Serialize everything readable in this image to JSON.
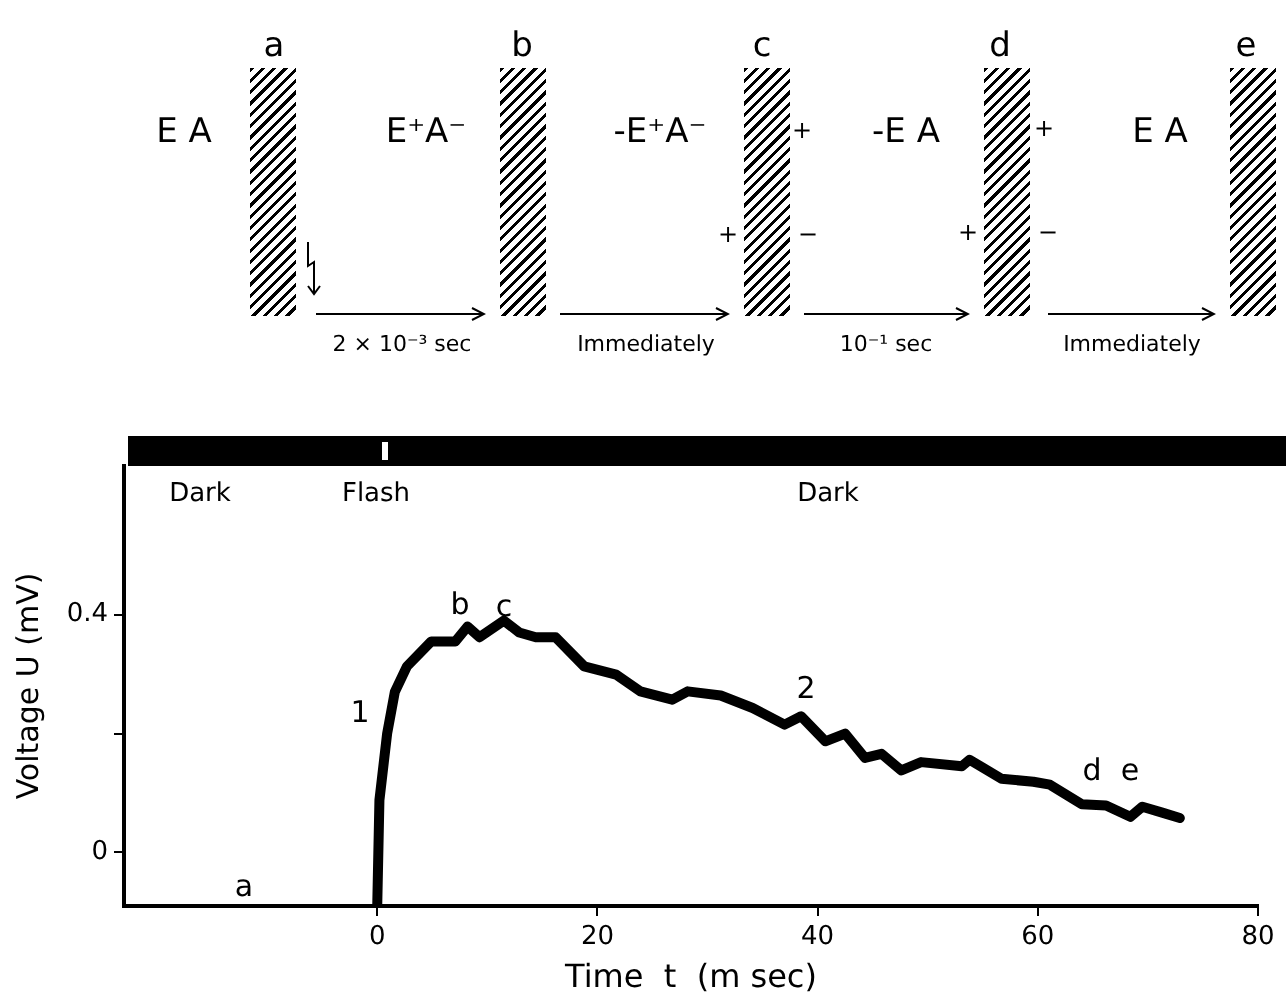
{
  "chart_data": {
    "type": "line",
    "xlabel": "Time  t  (m sec)",
    "ylabel": "Voltage U (mV)",
    "x": [
      0,
      0.2,
      0.9,
      1.6,
      2.7,
      4.9,
      7.1,
      8.2,
      9.3,
      11.5,
      12.9,
      14.4,
      16.2,
      18.8,
      21.7,
      23.9,
      26.8,
      28.2,
      31.2,
      34.1,
      37,
      38.5,
      40.7,
      42.5,
      44.3,
      45.8,
      47.6,
      49.4,
      53.1,
      53.8,
      56.7,
      59.6,
      61.1,
      64,
      66.2,
      68.4,
      69.5,
      71.3,
      72.9
    ],
    "series": [
      {
        "color": "#000000",
        "values": [
          -0.09,
          0.088,
          0.2,
          0.27,
          0.313,
          0.355,
          0.355,
          0.38,
          0.362,
          0.39,
          0.37,
          0.362,
          0.362,
          0.313,
          0.299,
          0.271,
          0.257,
          0.271,
          0.264,
          0.243,
          0.215,
          0.229,
          0.187,
          0.2,
          0.159,
          0.166,
          0.138,
          0.152,
          0.145,
          0.156,
          0.124,
          0.119,
          0.114,
          0.081,
          0.079,
          0.06,
          0.077,
          0.067,
          0.058
        ]
      }
    ],
    "xlim": [
      -23,
      80
    ],
    "xticks": [
      0,
      20,
      40,
      60,
      80
    ],
    "ylim": [
      -0.09,
      0.65
    ],
    "yticks": [
      0,
      {
        "value": 0.2,
        "label": null
      },
      0.4
    ],
    "grid": false,
    "legend": false,
    "marker": "none",
    "line_style": "solid",
    "annotations": [
      "a",
      "1",
      "b",
      "c",
      "2",
      "d",
      "e",
      "Dark",
      "Flash",
      "Dark",
      "a",
      "b",
      "c",
      "d",
      "e",
      "E A",
      "E⁺A⁻",
      "-E⁺A⁻",
      "-E A",
      "E A",
      "+",
      "+",
      "−",
      "+",
      "+",
      "−",
      "2 × 10⁻³ sec",
      "Immediately",
      "10⁻¹ sec",
      "Immediately"
    ]
  }
}
